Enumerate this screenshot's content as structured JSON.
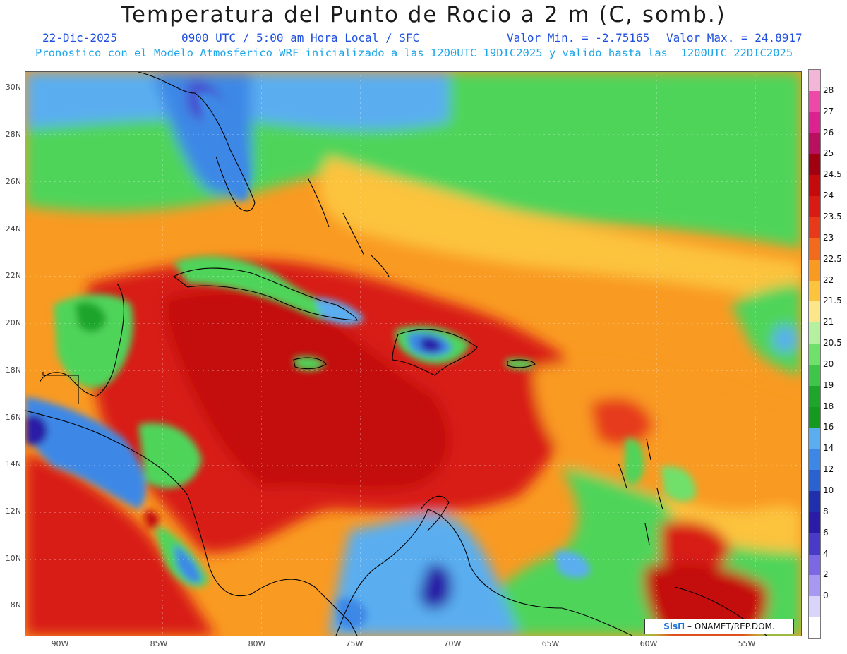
{
  "title": "Temperatura del Punto de Rocio a 2 m (C, somb.)",
  "info": {
    "date": "22-Dic-2025",
    "time": "0900 UTC / 5:00 am Hora Local / SFC",
    "min": "Valor Min. = -2.75165",
    "max": "Valor Max. = 24.8917",
    "model": "Pronostico con el Modelo Atmosferico WRF inicializado a las 1200UTC_19DIC2025 y valido hasta las  1200UTC_22DIC2025"
  },
  "lat_labels": [
    "30N",
    "28N",
    "26N",
    "24N",
    "22N",
    "20N",
    "18N",
    "16N",
    "14N",
    "12N",
    "10N",
    "8N"
  ],
  "lon_labels": [
    "90W",
    "85W",
    "80W",
    "75W",
    "70W",
    "65W",
    "60W",
    "55W"
  ],
  "colorbar": {
    "labels": [
      "28",
      "27",
      "26",
      "25",
      "24.5",
      "24",
      "23.5",
      "23",
      "22.5",
      "22",
      "21.5",
      "21",
      "20.5",
      "20",
      "19",
      "18",
      "16",
      "14",
      "12",
      "10",
      "8",
      "6",
      "4",
      "2",
      "0"
    ],
    "colors": [
      "#f4b6d8",
      "#ee48a8",
      "#db2290",
      "#b8105e",
      "#a00010",
      "#c40a0a",
      "#d81c14",
      "#e63a1a",
      "#f26a1c",
      "#f99a22",
      "#fcc33e",
      "#fde68a",
      "#b4f0a0",
      "#6fe06a",
      "#3fc64a",
      "#1ea52c",
      "#159a20",
      "#5aaef0",
      "#3d88e6",
      "#2a62d2",
      "#1f2fae",
      "#2a1ca6",
      "#4a3ac8",
      "#7c68e4",
      "#a898f2",
      "#d8d4fa",
      "#ffffff"
    ]
  },
  "credit": {
    "brand": "SisΠ",
    "text": " – ONAMET/REP.DOM."
  }
}
